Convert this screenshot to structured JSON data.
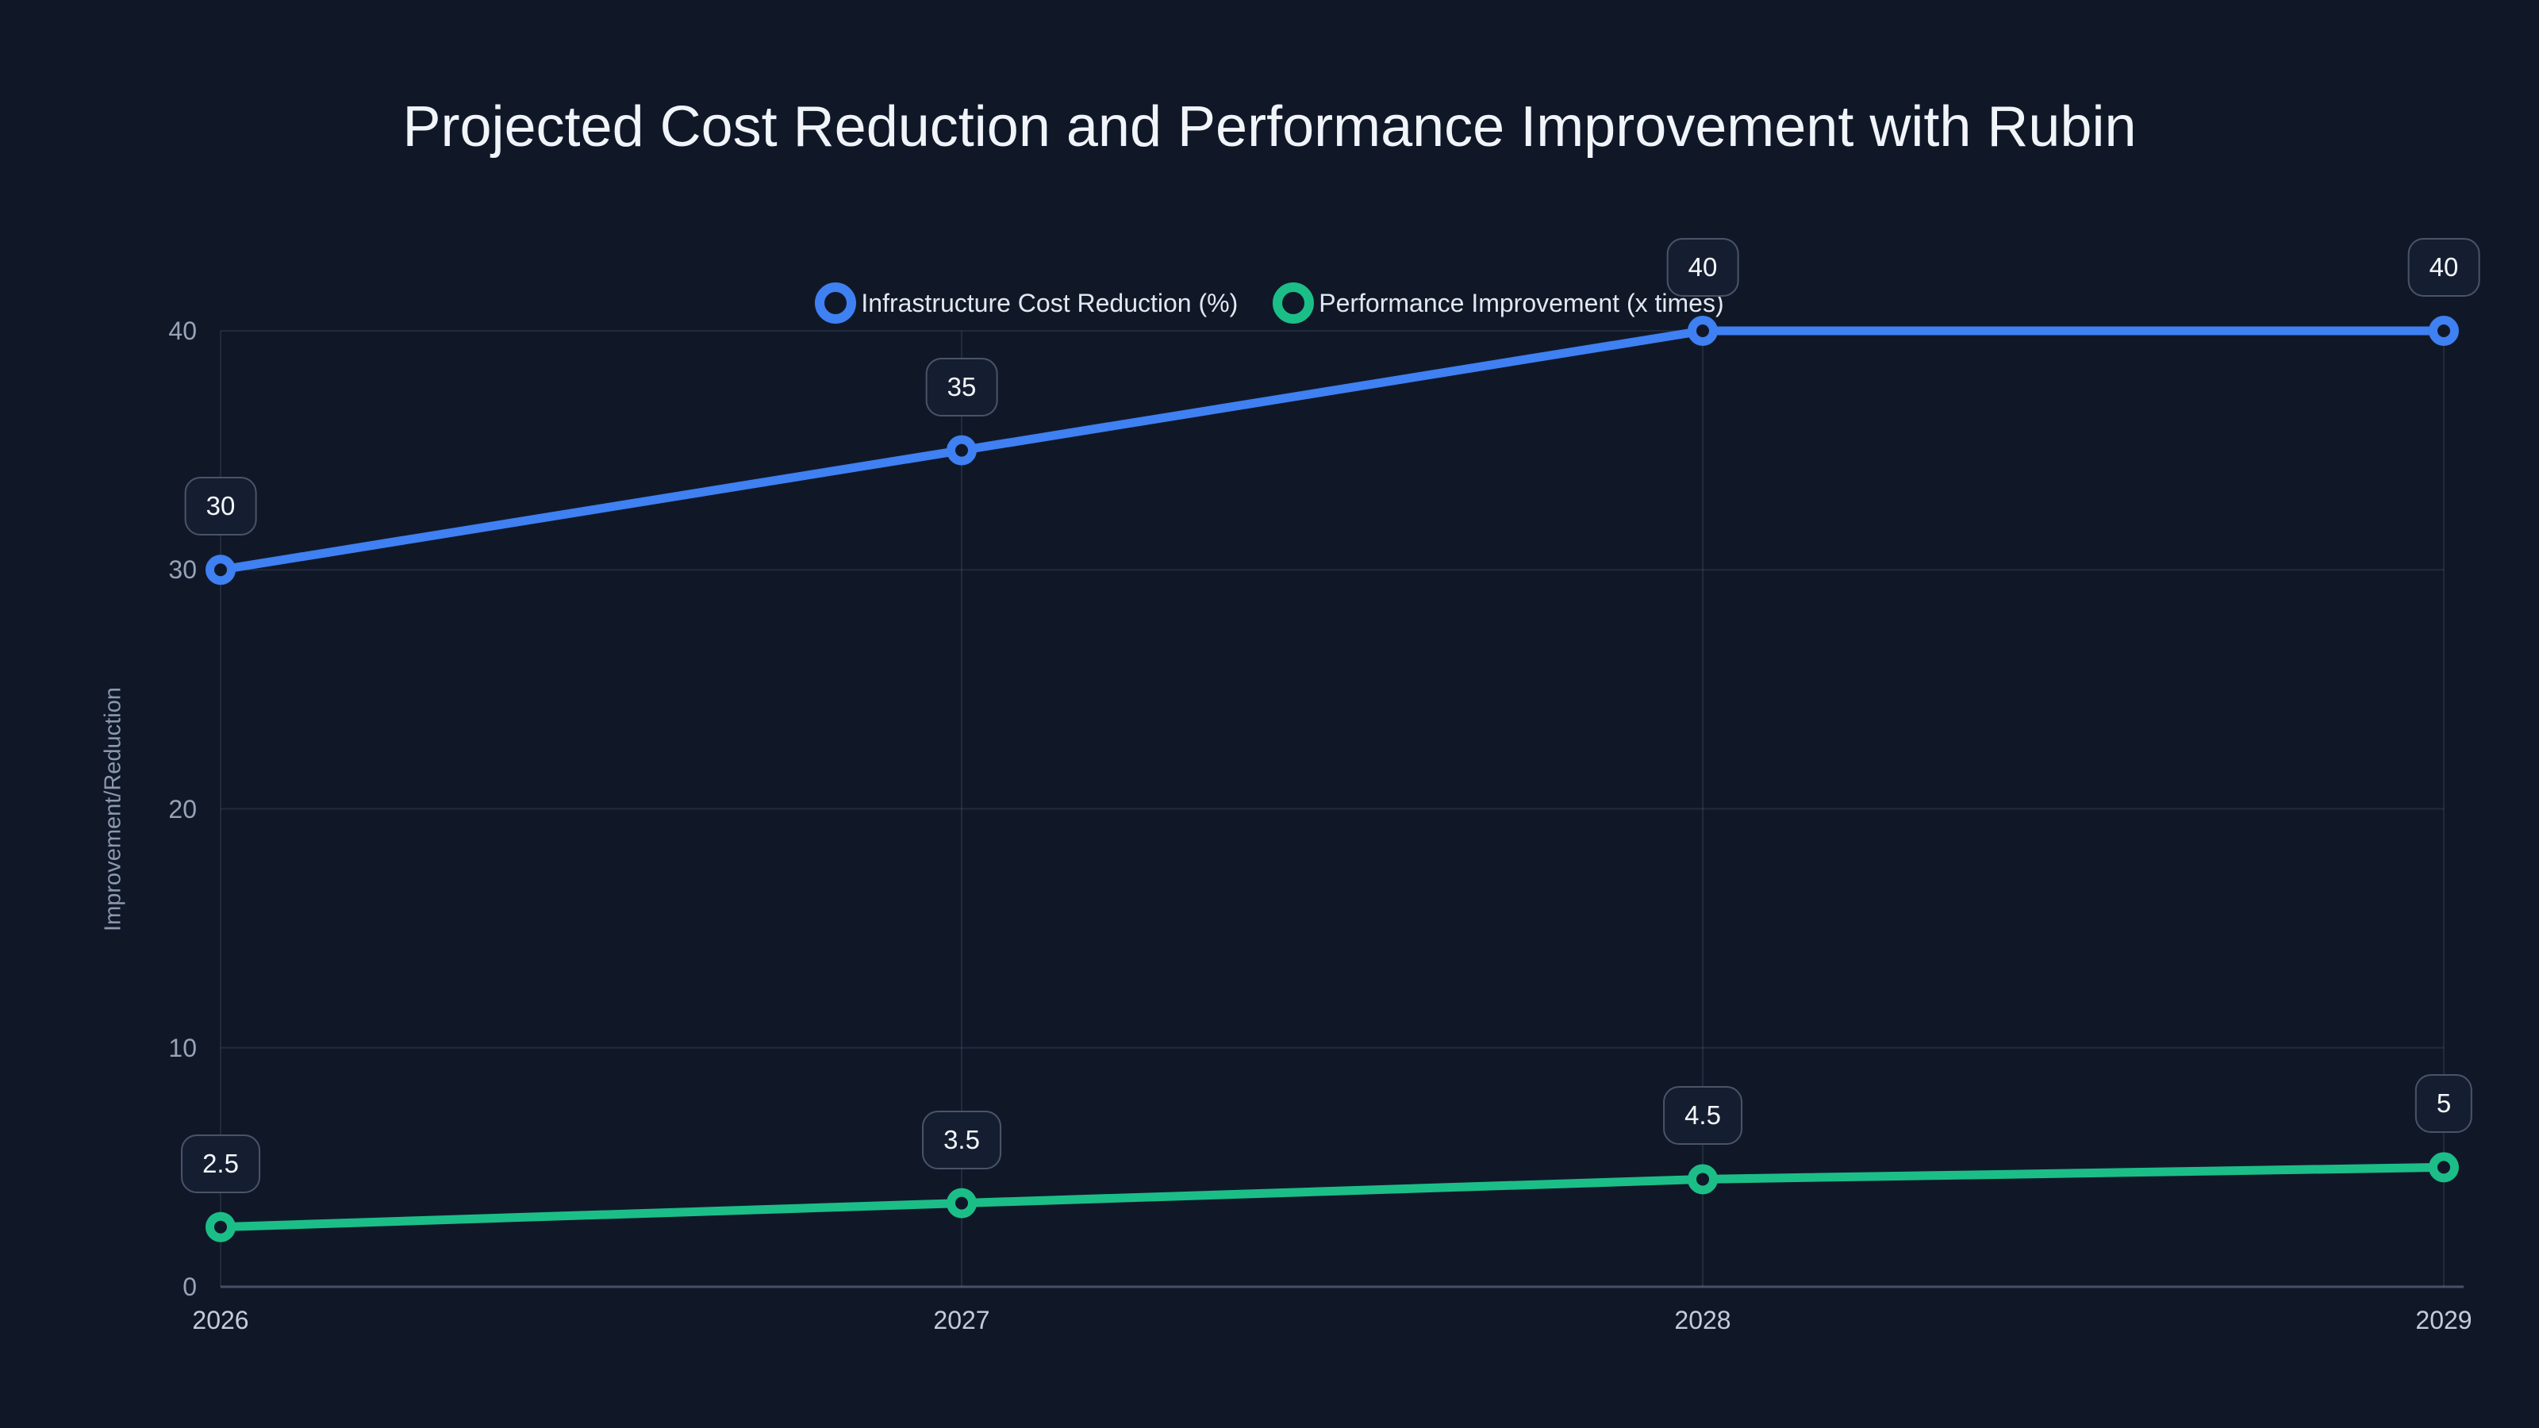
{
  "title": "Projected Cost Reduction and Performance Improvement with Rubin",
  "theme": {
    "background": "#101828",
    "title_color": "#f1f5fa",
    "grid_color": "rgba(148,163,184,0.14)",
    "axis_line_color": "rgba(148,163,184,0.42)",
    "y_tick_color": "#97a3b6",
    "x_tick_color": "#c3ccda",
    "label_box_bg": "#151e31",
    "label_box_border": "#4a5468",
    "blue": "#3f80f2",
    "green": "#1cbe88"
  },
  "chart_data": {
    "type": "line",
    "title": "Projected Cost Reduction and Performance Improvement with Rubin",
    "x": [
      "2026",
      "2027",
      "2028",
      "2029"
    ],
    "series": [
      {
        "name": "Infrastructure Cost Reduction (%)",
        "color": "#3f80f2",
        "values": [
          30,
          35,
          40,
          40
        ],
        "labels": [
          "30",
          "35",
          "40",
          "40"
        ]
      },
      {
        "name": "Performance Improvement (x times)",
        "color": "#1cbe88",
        "values": [
          2.5,
          3.5,
          4.5,
          5
        ],
        "labels": [
          "2.5",
          "3.5",
          "4.5",
          "5"
        ]
      }
    ],
    "xlabel": "",
    "ylabel": "Improvement/Reduction",
    "yticks": [
      0,
      10,
      20,
      30,
      40
    ],
    "ylim": [
      0,
      40
    ],
    "grid": true,
    "data_labels": true,
    "legend_position": "top-center",
    "marker_style": "open-circle"
  }
}
